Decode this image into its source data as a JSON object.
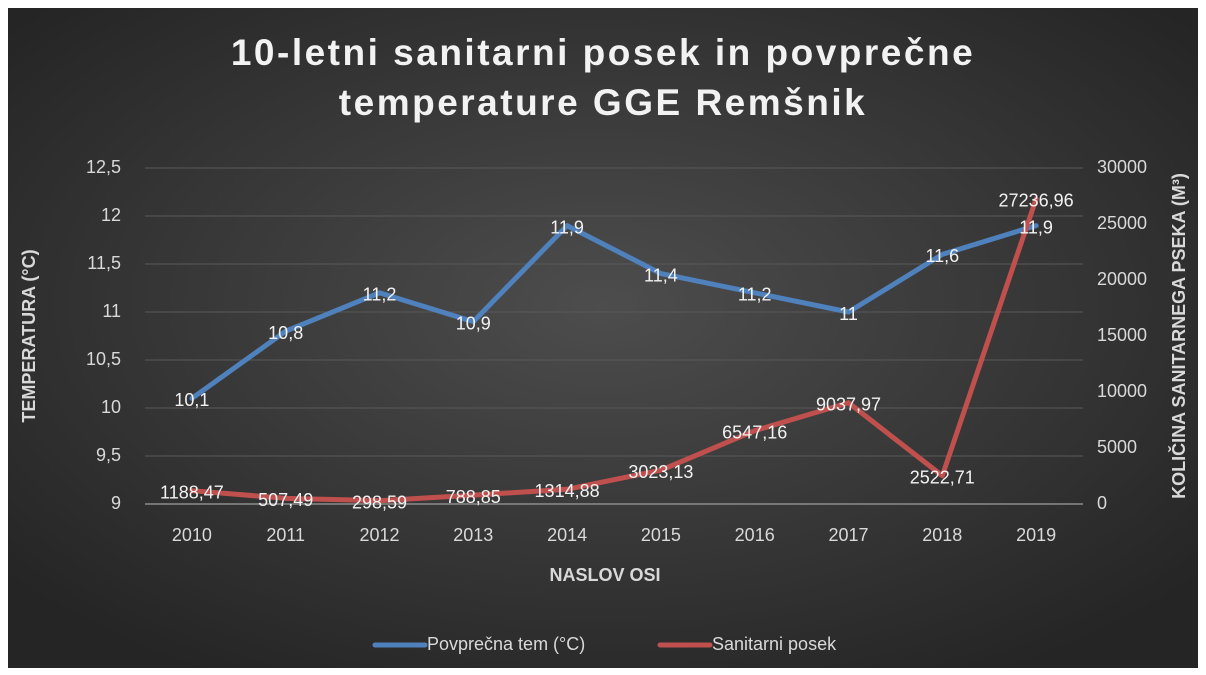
{
  "chart_data": {
    "type": "line",
    "title": "10-letni sanitarni posek in povprečne temperature GGE Remšnik",
    "x_label": "NASLOV OSI",
    "y_label": "TEMPERATURA (°C)",
    "y2_label": "KOLIČINA SANITARNEGA PSEKA (M³)",
    "categories": [
      "2010",
      "2011",
      "2012",
      "2013",
      "2014",
      "2015",
      "2016",
      "2017",
      "2018",
      "2019"
    ],
    "series": [
      {
        "name": "Povprečna tem (°C)",
        "color": "#4f81bd",
        "axis": "y",
        "values": [
          10.1,
          10.8,
          11.2,
          10.9,
          11.9,
          11.4,
          11.2,
          11,
          11.6,
          11.9
        ],
        "value_labels": [
          "10,1",
          "10,8",
          "11,2",
          "10,9",
          "11,9",
          "11,4",
          "11,2",
          "11",
          "11,6",
          "11,9"
        ]
      },
      {
        "name": "Sanitarni posek",
        "color": "#c0504d",
        "axis": "y2",
        "values": [
          1188.47,
          507.49,
          298.59,
          788.85,
          1314.88,
          3023.13,
          6547.16,
          9037.97,
          2522.71,
          27236.96
        ],
        "value_labels": [
          "1188,47",
          "507,49",
          "298,59",
          "788,85",
          "1314,88",
          "3023,13",
          "6547,16",
          "9037,97",
          "2522,71",
          "27236,96"
        ]
      }
    ],
    "ylim": [
      9,
      12.5
    ],
    "yticks": [
      9,
      {
        "value": 9.5,
        "label": "9,5"
      },
      10,
      {
        "value": 10.5,
        "label": "10,5"
      },
      11,
      {
        "value": 11.5,
        "label": "11,5"
      },
      12,
      {
        "value": 12.5,
        "label": "12,5"
      }
    ],
    "y2lim": [
      0,
      30000
    ],
    "y2ticks": [
      0,
      5000,
      10000,
      15000,
      20000,
      25000,
      30000
    ],
    "grid": true,
    "legend": "bottom"
  }
}
